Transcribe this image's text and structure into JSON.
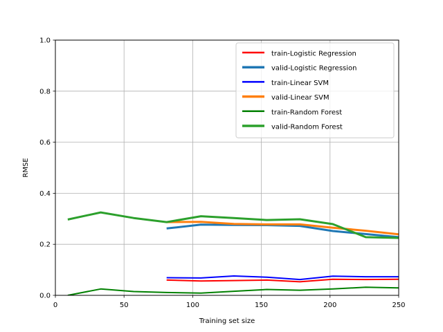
{
  "chart_data": {
    "type": "line",
    "title": "",
    "xlabel": "Training set size",
    "ylabel": "RMSE",
    "xlim": [
      0,
      250
    ],
    "ylim": [
      0,
      1.0
    ],
    "xticks": [
      0,
      50,
      100,
      150,
      200,
      250
    ],
    "yticks": [
      0.0,
      0.2,
      0.4,
      0.6,
      0.8,
      1.0
    ],
    "xtick_labels": [
      "0",
      "50",
      "100",
      "150",
      "200",
      "250"
    ],
    "ytick_labels": [
      "0.0",
      "0.2",
      "0.4",
      "0.6",
      "0.8",
      "1.0"
    ],
    "grid": true,
    "legend_position": "top-right",
    "series": [
      {
        "name": "train-Logistic Regression",
        "color": "#ff0000",
        "width": "thin",
        "x": [
          81,
          106,
          130,
          154,
          178,
          202,
          226,
          250
        ],
        "y": [
          0.06,
          0.056,
          0.058,
          0.06,
          0.053,
          0.063,
          0.062,
          0.063
        ]
      },
      {
        "name": "valid-Logistic Regression",
        "color": "#1f77b4",
        "width": "thick",
        "x": [
          81,
          106,
          130,
          154,
          178,
          202,
          226,
          250
        ],
        "y": [
          0.262,
          0.277,
          0.276,
          0.275,
          0.272,
          0.252,
          0.24,
          0.228
        ]
      },
      {
        "name": "train-Linear SVM",
        "color": "#0000ff",
        "width": "thin",
        "x": [
          81,
          106,
          130,
          154,
          178,
          202,
          226,
          250
        ],
        "y": [
          0.069,
          0.068,
          0.076,
          0.071,
          0.062,
          0.075,
          0.073,
          0.073
        ]
      },
      {
        "name": "valid-Linear SVM",
        "color": "#ff7f0e",
        "width": "thick",
        "x": [
          81,
          106,
          130,
          154,
          178,
          202,
          226,
          250
        ],
        "y": [
          0.287,
          0.288,
          0.28,
          0.278,
          0.278,
          0.265,
          0.253,
          0.239
        ]
      },
      {
        "name": "train-Random Forest",
        "color": "#008000",
        "width": "thin",
        "x": [
          9,
          33,
          57,
          81,
          106,
          130,
          154,
          178,
          202,
          226,
          250
        ],
        "y": [
          0.0,
          0.025,
          0.015,
          0.011,
          0.009,
          0.016,
          0.023,
          0.02,
          0.025,
          0.032,
          0.029
        ]
      },
      {
        "name": "valid-Random Forest",
        "color": "#2ca02c",
        "width": "thick",
        "x": [
          9,
          33,
          57,
          81,
          106,
          130,
          154,
          178,
          202,
          226,
          250
        ],
        "y": [
          0.297,
          0.325,
          0.303,
          0.287,
          0.31,
          0.303,
          0.295,
          0.298,
          0.279,
          0.228,
          0.225
        ]
      }
    ]
  }
}
